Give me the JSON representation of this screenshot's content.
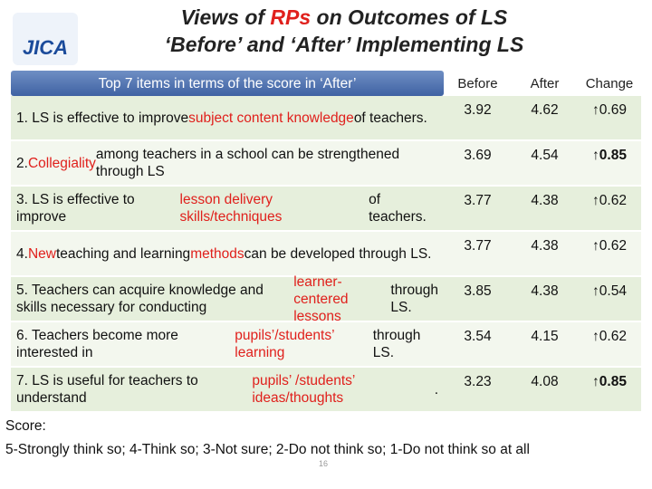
{
  "header": {
    "logo": "JICA",
    "title": [
      [
        {
          "text": "Views of "
        },
        {
          "text": "RPs",
          "highlight": true
        },
        {
          "text": " on Outcomes of LS"
        }
      ],
      [
        {
          "text": "‘Before’ and ‘After’ Implementing LS"
        }
      ]
    ]
  },
  "table": {
    "columns": [
      "Top 7 items in terms of the score in ‘After’",
      "Before",
      "After",
      "Change"
    ],
    "rows": [
      {
        "item": [
          {
            "text": "1. LS is effective to improve "
          },
          {
            "text": "subject content knowledge",
            "highlight": true
          },
          {
            "text": " of teachers."
          }
        ],
        "before": 3.92,
        "after": 4.62,
        "change": "↑0.69"
      },
      {
        "item": [
          {
            "text": "2. "
          },
          {
            "text": "Collegiality",
            "highlight": true
          },
          {
            "text": " among teachers in a school can be strengthened through LS"
          }
        ],
        "before": 3.69,
        "after": 4.54,
        "change": "↑0.85",
        "change_bold": true
      },
      {
        "item": [
          {
            "text": "3. LS is effective to improve "
          },
          {
            "text": "lesson delivery skills/techniques",
            "highlight": true
          },
          {
            "text": " of teachers."
          }
        ],
        "before": 3.77,
        "after": 4.38,
        "change": "↑0.62"
      },
      {
        "item": [
          {
            "text": "4. "
          },
          {
            "text": "New",
            "highlight": true
          },
          {
            "text": " teaching and learning "
          },
          {
            "text": "methods",
            "highlight": true
          },
          {
            "text": " can be developed through LS."
          }
        ],
        "before": 3.77,
        "after": 4.38,
        "change": "↑0.62"
      },
      {
        "item": [
          {
            "text": "5. Teachers can acquire knowledge and skills necessary for conducting "
          },
          {
            "text": "learner-centered lessons",
            "highlight": true
          },
          {
            "text": " through LS."
          }
        ],
        "before": 3.85,
        "after": 4.38,
        "change": "↑0.54"
      },
      {
        "item": [
          {
            "text": "6. Teachers become more interested in "
          },
          {
            "text": "pupils’/students’ learning",
            "highlight": true
          },
          {
            "text": " through LS."
          }
        ],
        "before": 3.54,
        "after": 4.15,
        "change": "↑0.62"
      },
      {
        "item": [
          {
            "text": "7. LS is useful for teachers to understand "
          },
          {
            "text": "pupils’ /students’ ideas/thoughts",
            "highlight": true
          },
          {
            "text": "."
          }
        ],
        "before": 3.23,
        "after": 4.08,
        "change": "↑0.85",
        "change_bold": true
      }
    ]
  },
  "footer": {
    "score_title": "Score:",
    "score_scale": "5-Strongly think so; 4-Think so; 3-Not sure; 2-Do not think so; 1-Do not think so at all",
    "page_number": "16"
  }
}
